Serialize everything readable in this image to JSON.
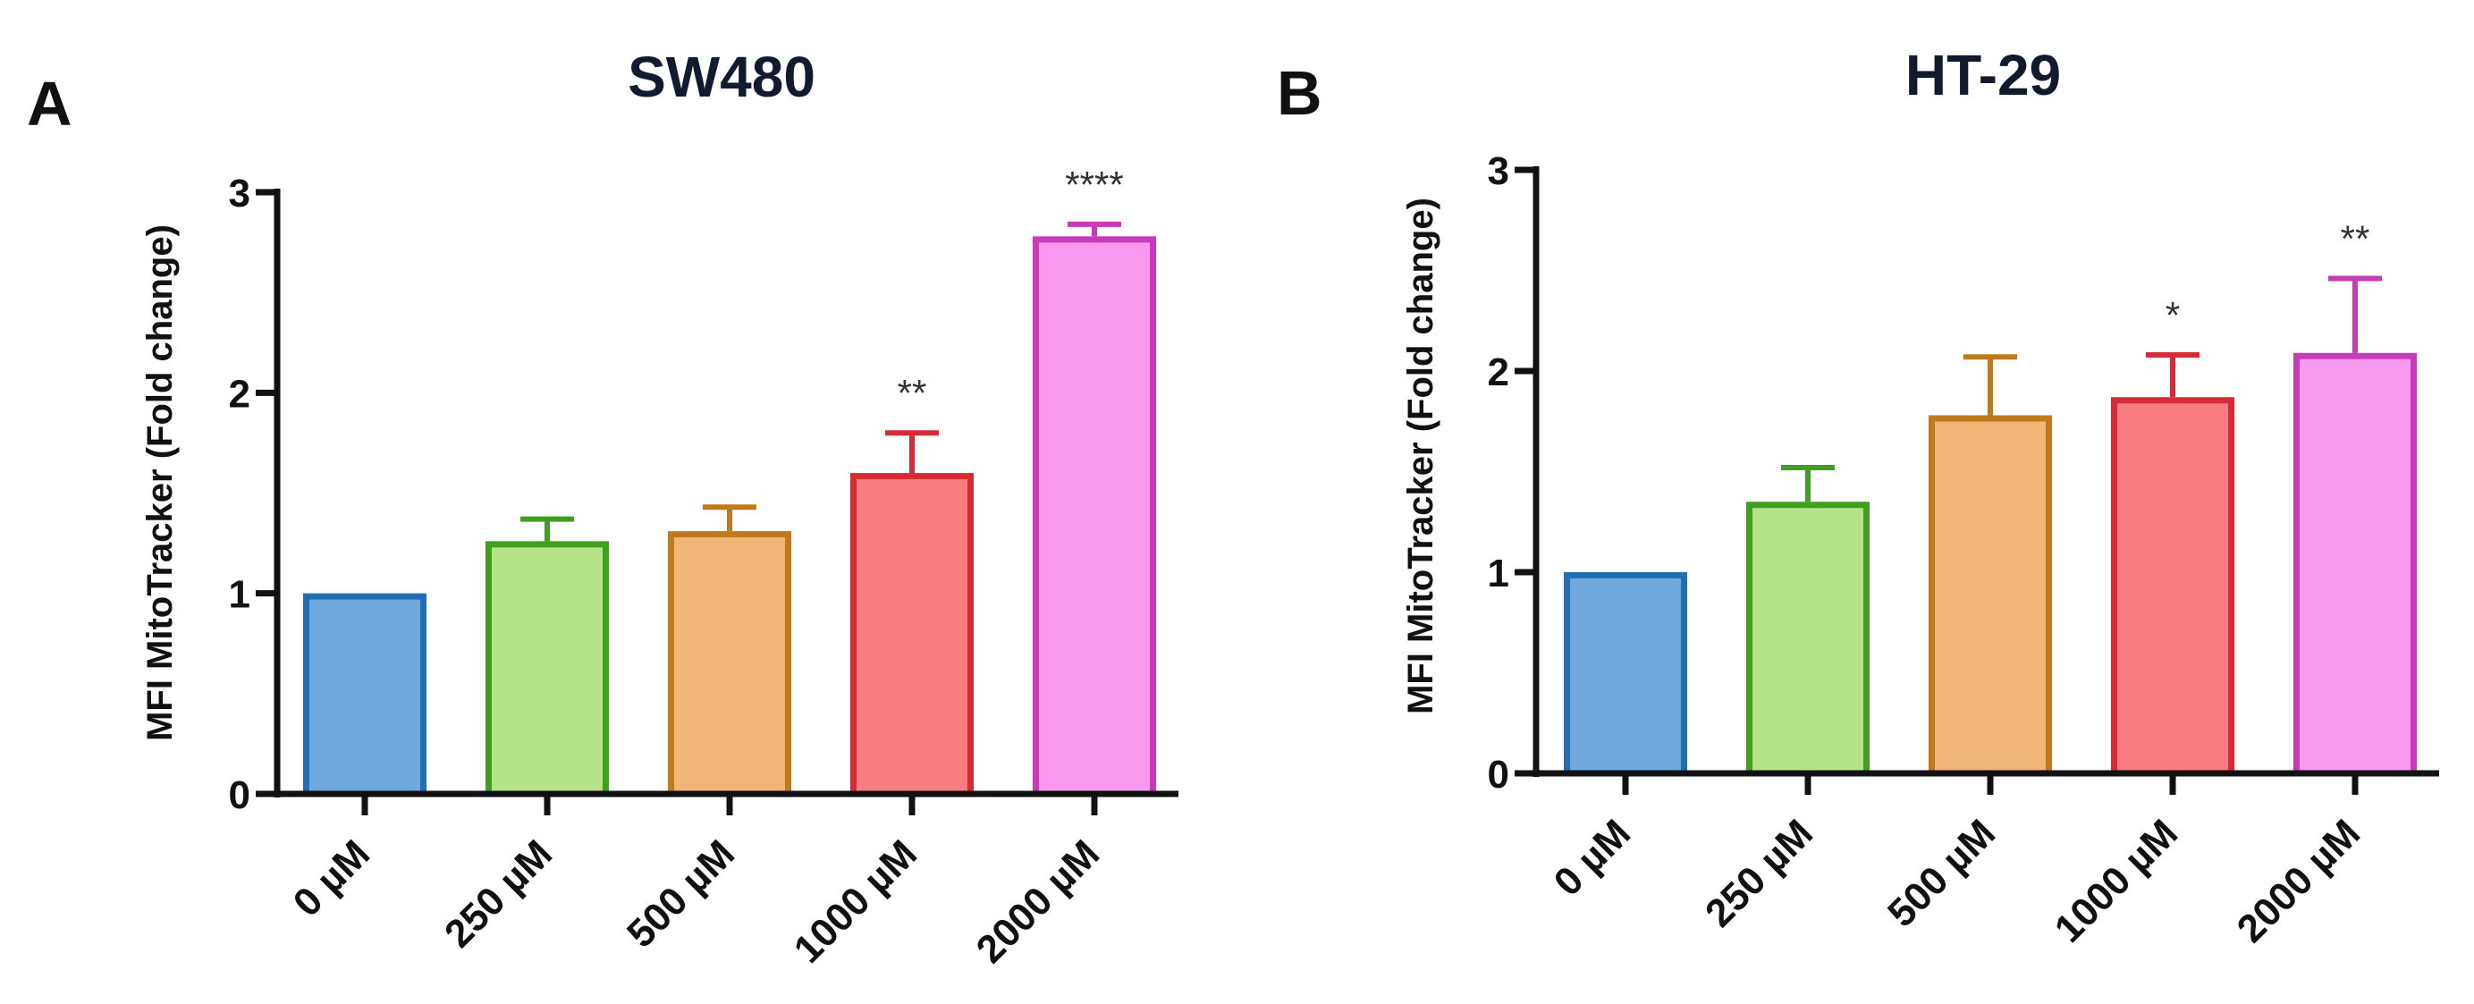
{
  "chart_data": [
    {
      "panel": "A",
      "type": "bar",
      "title": "SW480",
      "xlabel": "",
      "ylabel": "MFI MitoTracker (Fold change)",
      "ylim": [
        0,
        3
      ],
      "yticks": [
        0,
        1,
        2,
        3
      ],
      "categories": [
        "0 µM",
        "250 µM",
        "500 µM",
        "1000 µM",
        "2000 µM"
      ],
      "values": [
        1.0,
        1.26,
        1.31,
        1.6,
        2.78
      ],
      "errors": [
        0,
        0.11,
        0.12,
        0.2,
        0.06
      ],
      "significance": [
        "",
        "",
        "",
        "**",
        "****"
      ],
      "fill_colors": [
        "#6fa8dc",
        "#b6e388",
        "#f0b577",
        "#f77d80",
        "#f99af0"
      ],
      "edge_colors": [
        "#1f6fb2",
        "#3f9f1f",
        "#c07a1e",
        "#d62a35",
        "#c73ab8"
      ]
    },
    {
      "panel": "B",
      "type": "bar",
      "title": "HT-29",
      "xlabel": "",
      "ylabel": "MFI MitoTracker (Fold change)",
      "ylim": [
        0,
        3
      ],
      "yticks": [
        0,
        1,
        2,
        3
      ],
      "categories": [
        "0 µM",
        "250 µM",
        "500 µM",
        "1000 µM",
        "2000 µM"
      ],
      "values": [
        1.0,
        1.35,
        1.78,
        1.87,
        2.09
      ],
      "errors": [
        0,
        0.17,
        0.29,
        0.21,
        0.37
      ],
      "significance": [
        "",
        "",
        "",
        "*",
        "**"
      ],
      "fill_colors": [
        "#6fa8dc",
        "#b6e388",
        "#f0b577",
        "#f77d80",
        "#f99af0"
      ],
      "edge_colors": [
        "#1f6fb2",
        "#3f9f1f",
        "#c07a1e",
        "#d62a35",
        "#c73ab8"
      ]
    }
  ]
}
